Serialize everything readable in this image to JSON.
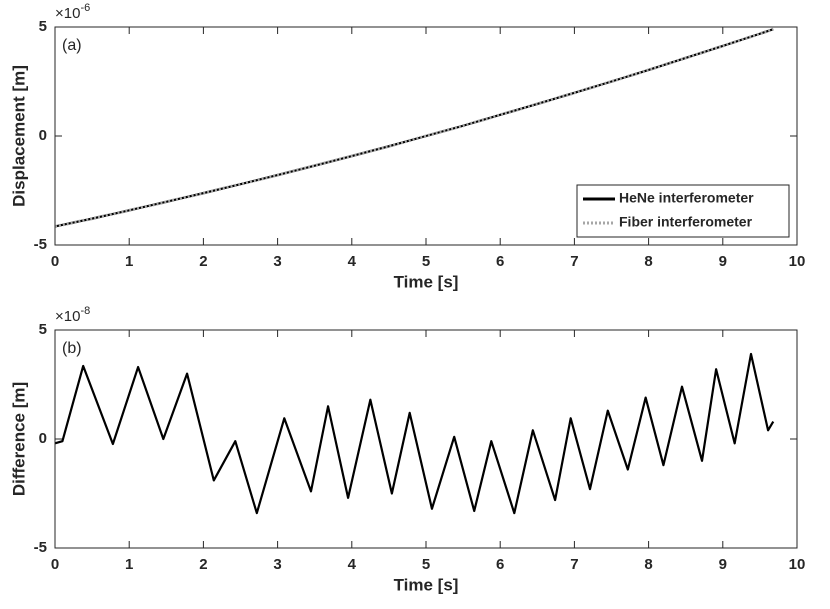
{
  "chart_data": [
    {
      "type": "line",
      "annotation": "(a)",
      "xlabel": "Time [s]",
      "ylabel": "Displacement [m]",
      "y_exponent": {
        "base": "×10",
        "power": "-6"
      },
      "xlim": [
        0,
        10
      ],
      "ylim": [
        -5,
        5
      ],
      "xticks": [
        0,
        1,
        2,
        3,
        4,
        5,
        6,
        7,
        8,
        9,
        10
      ],
      "yticks": [
        -5,
        0,
        5
      ],
      "legend": "lower right",
      "x": [
        0,
        0.5,
        1,
        1.5,
        2,
        2.5,
        3,
        3.5,
        4,
        4.5,
        5,
        5.5,
        6,
        6.5,
        7,
        7.5,
        8,
        8.5,
        9,
        9.5,
        9.68
      ],
      "series": [
        {
          "name": "HeNe interferometer",
          "color": "#000000",
          "line_style": "solid",
          "values": [
            -4.15,
            -3.79,
            -3.41,
            -3.02,
            -2.62,
            -2.21,
            -1.79,
            -1.36,
            -0.92,
            -0.47,
            0,
            0.47,
            0.97,
            1.47,
            1.98,
            2.5,
            3.03,
            3.58,
            4.13,
            4.69,
            4.9
          ]
        },
        {
          "name": "Fiber interferometer",
          "color": "#a6a6a6",
          "line_style": "dotted",
          "values": [
            -4.15,
            -3.79,
            -3.41,
            -3.02,
            -2.62,
            -2.21,
            -1.79,
            -1.36,
            -0.92,
            -0.47,
            0,
            0.47,
            0.97,
            1.47,
            1.98,
            2.5,
            3.03,
            3.58,
            4.13,
            4.69,
            4.9
          ]
        }
      ]
    },
    {
      "type": "line",
      "annotation": "(b)",
      "xlabel": "Time [s]",
      "ylabel": "Difference [m]",
      "y_exponent": {
        "base": "×10",
        "power": "-8"
      },
      "xlim": [
        0,
        10
      ],
      "ylim": [
        -5,
        5
      ],
      "xticks": [
        0,
        1,
        2,
        3,
        4,
        5,
        6,
        7,
        8,
        9,
        10
      ],
      "yticks": [
        -5,
        0,
        5
      ],
      "x": [
        0,
        0.1,
        0.38,
        0.78,
        1.12,
        1.46,
        1.78,
        2.14,
        2.43,
        2.72,
        3.09,
        3.45,
        3.68,
        3.95,
        4.25,
        4.54,
        4.78,
        5.08,
        5.38,
        5.65,
        5.88,
        6.19,
        6.44,
        6.74,
        6.95,
        7.21,
        7.45,
        7.72,
        7.96,
        8.2,
        8.45,
        8.72,
        8.91,
        9.16,
        9.38,
        9.61,
        9.68
      ],
      "series": [
        {
          "name": "Difference",
          "color": "#000000",
          "line_style": "solid",
          "values": [
            -0.2,
            -0.1,
            3.35,
            -0.23,
            3.3,
            0,
            3.0,
            -1.9,
            -0.1,
            -3.4,
            0.95,
            -2.4,
            1.5,
            -2.7,
            1.8,
            -2.5,
            1.2,
            -3.2,
            0.1,
            -3.3,
            -0.1,
            -3.4,
            0.4,
            -2.8,
            0.95,
            -2.3,
            1.3,
            -1.4,
            1.9,
            -1.2,
            2.4,
            -1.0,
            3.2,
            -0.2,
            3.9,
            0.4,
            0.8
          ]
        }
      ]
    }
  ]
}
